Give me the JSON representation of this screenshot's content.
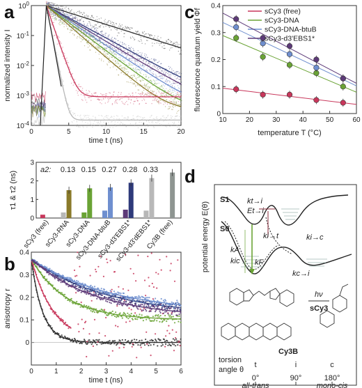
{
  "panels": {
    "a": "a",
    "b": "b",
    "c": "c",
    "d": "d"
  },
  "colors": {
    "black": "#2f2f2f",
    "navy": "#2e3a7a",
    "purple": "#5d3a78",
    "green": "#6aa335",
    "blue": "#6f8fcf",
    "olive": "#8a7a2a",
    "red": "#c8375b",
    "gray": "#b8b8b8",
    "lgray": "#d9d9d9",
    "darkgray": "#8e9591"
  },
  "chart_data": [
    {
      "panel": "a",
      "type": "line",
      "xlabel": "time t (ns)",
      "ylabel": "normalized intensity I",
      "xlim": [
        0,
        20
      ],
      "ylim": [
        0.0001,
        1
      ],
      "yscale": "log",
      "xticks": [
        "0",
        "5",
        "10",
        "15",
        "20"
      ],
      "yticks": [
        "10^-4",
        "10^-3",
        "10^-2",
        "10^-1",
        "10^0"
      ],
      "series": [
        {
          "color": "black",
          "tau": 5.5,
          "floor": 0.0005
        },
        {
          "color": "navy",
          "tau": 3.2,
          "floor": 0.0004
        },
        {
          "color": "purple",
          "tau": 2.9,
          "floor": 0.0004
        },
        {
          "color": "blue",
          "tau": 2.6,
          "floor": 0.0003
        },
        {
          "color": "green",
          "tau": 2.3,
          "floor": 0.0003
        },
        {
          "color": "olive",
          "tau": 2.0,
          "floor": 0.0003
        },
        {
          "color": "red",
          "tau": 0.6,
          "floor": 0.0009
        },
        {
          "color": "gray",
          "tau": 0.35,
          "floor": 0.00015
        }
      ]
    },
    {
      "panel": "a-inset",
      "type": "bar",
      "ylabel": "τ1 & τ2 (ns)",
      "ylim": [
        0,
        3
      ],
      "yticks": [
        "0",
        "1",
        "2",
        "3"
      ],
      "categories": [
        "sCy3 (free)",
        "sCy3-RNA",
        "sCy3-DNA",
        "sCy3-DNA-btuB",
        "sCy3-d3'EBS1*",
        "sCy3-d3'dEBS1*",
        "Cy3B (free)"
      ],
      "a2_label": "a2:",
      "a2_values": [
        "",
        "0.13",
        "0.15",
        "0.27",
        "0.28",
        "0.33",
        ""
      ],
      "tau1": [
        0.18,
        0.3,
        0.3,
        0.4,
        0.45,
        0.4,
        0
      ],
      "tau2": [
        0,
        1.5,
        1.6,
        1.65,
        1.9,
        2.15,
        2.45
      ],
      "colors_tau1": [
        "red",
        "gray",
        "green",
        "blue",
        "purple",
        "gray",
        ""
      ],
      "colors_tau2": [
        "",
        "olive",
        "green",
        "blue",
        "navy",
        "gray",
        "darkgray"
      ]
    },
    {
      "panel": "b",
      "type": "scatter",
      "xlabel": "time t (ns)",
      "ylabel": "anisotropy r",
      "xlim": [
        0,
        6
      ],
      "ylim": [
        -0.1,
        0.4
      ],
      "xticks": [
        "0",
        "1",
        "2",
        "3",
        "4",
        "5",
        "6"
      ],
      "yticks": [
        "0",
        "0.1",
        "0.2",
        "0.3",
        "0.4"
      ],
      "series": [
        {
          "color": "black",
          "r0": 0.37,
          "tau": 0.45,
          "rinf": 0.0,
          "tmax": 6
        },
        {
          "color": "red",
          "r0": 0.37,
          "tau": 0.9,
          "rinf": 0.0,
          "tmax": 1.6
        },
        {
          "color": "green",
          "r0": 0.37,
          "tau": 1.4,
          "rinf": 0.1,
          "tmax": 6
        },
        {
          "color": "navy",
          "r0": 0.37,
          "tau": 3.0,
          "rinf": 0.12,
          "tmax": 6
        },
        {
          "color": "blue",
          "r0": 0.37,
          "tau": 3.2,
          "rinf": 0.13,
          "tmax": 6
        },
        {
          "color": "purple",
          "r0": 0.37,
          "tau": 2.6,
          "rinf": 0.11,
          "tmax": 6
        }
      ]
    },
    {
      "panel": "c",
      "type": "scatter",
      "xlabel": "temperature T (°C)",
      "ylabel": "fluorescence quantum yield Φf",
      "xlim": [
        10,
        60
      ],
      "ylim": [
        0,
        0.4
      ],
      "xticks": [
        "10",
        "20",
        "30",
        "40",
        "50",
        "60"
      ],
      "yticks": [
        "0",
        "0.1",
        "0.2",
        "0.3",
        "0.4"
      ],
      "x": [
        15,
        25,
        35,
        45,
        55
      ],
      "series": [
        {
          "name": "sCy3 (free)",
          "color": "red",
          "values": [
            0.09,
            0.07,
            0.07,
            0.05,
            0.04
          ]
        },
        {
          "name": "sCy3-DNA",
          "color": "green",
          "values": [
            0.28,
            0.21,
            0.18,
            0.15,
            0.1
          ]
        },
        {
          "name": "sCy3-DNA-btuB",
          "color": "blue",
          "values": [
            0.32,
            0.26,
            0.22,
            0.17,
            0.13
          ]
        },
        {
          "name": "sCy3-d3'EBS1*",
          "color": "purple",
          "values": [
            0.35,
            0.28,
            0.25,
            0.2,
            0.13
          ]
        }
      ]
    }
  ],
  "diagram": {
    "ylabel": "potential energy E(θ)",
    "S1": "S1",
    "S0": "S0",
    "k_t_i": "kt→i",
    "E_t_i": "Et→i",
    "kA": "kA",
    "kF": "kF",
    "kic": "kic",
    "ki_t": "ki→t",
    "ki_c": "ki→c",
    "kc_i": "kc→i",
    "hv": "hν",
    "sCy3": "sCy3",
    "Cy3B": "Cy3B",
    "torsion": "torsion",
    "angle": "angle θ",
    "t": "t",
    "i": "i",
    "c": "c",
    "deg0": "0°",
    "deg90": "90°",
    "deg180": "180°",
    "alltrans": "all-trans",
    "monocis": "mono-cis"
  }
}
